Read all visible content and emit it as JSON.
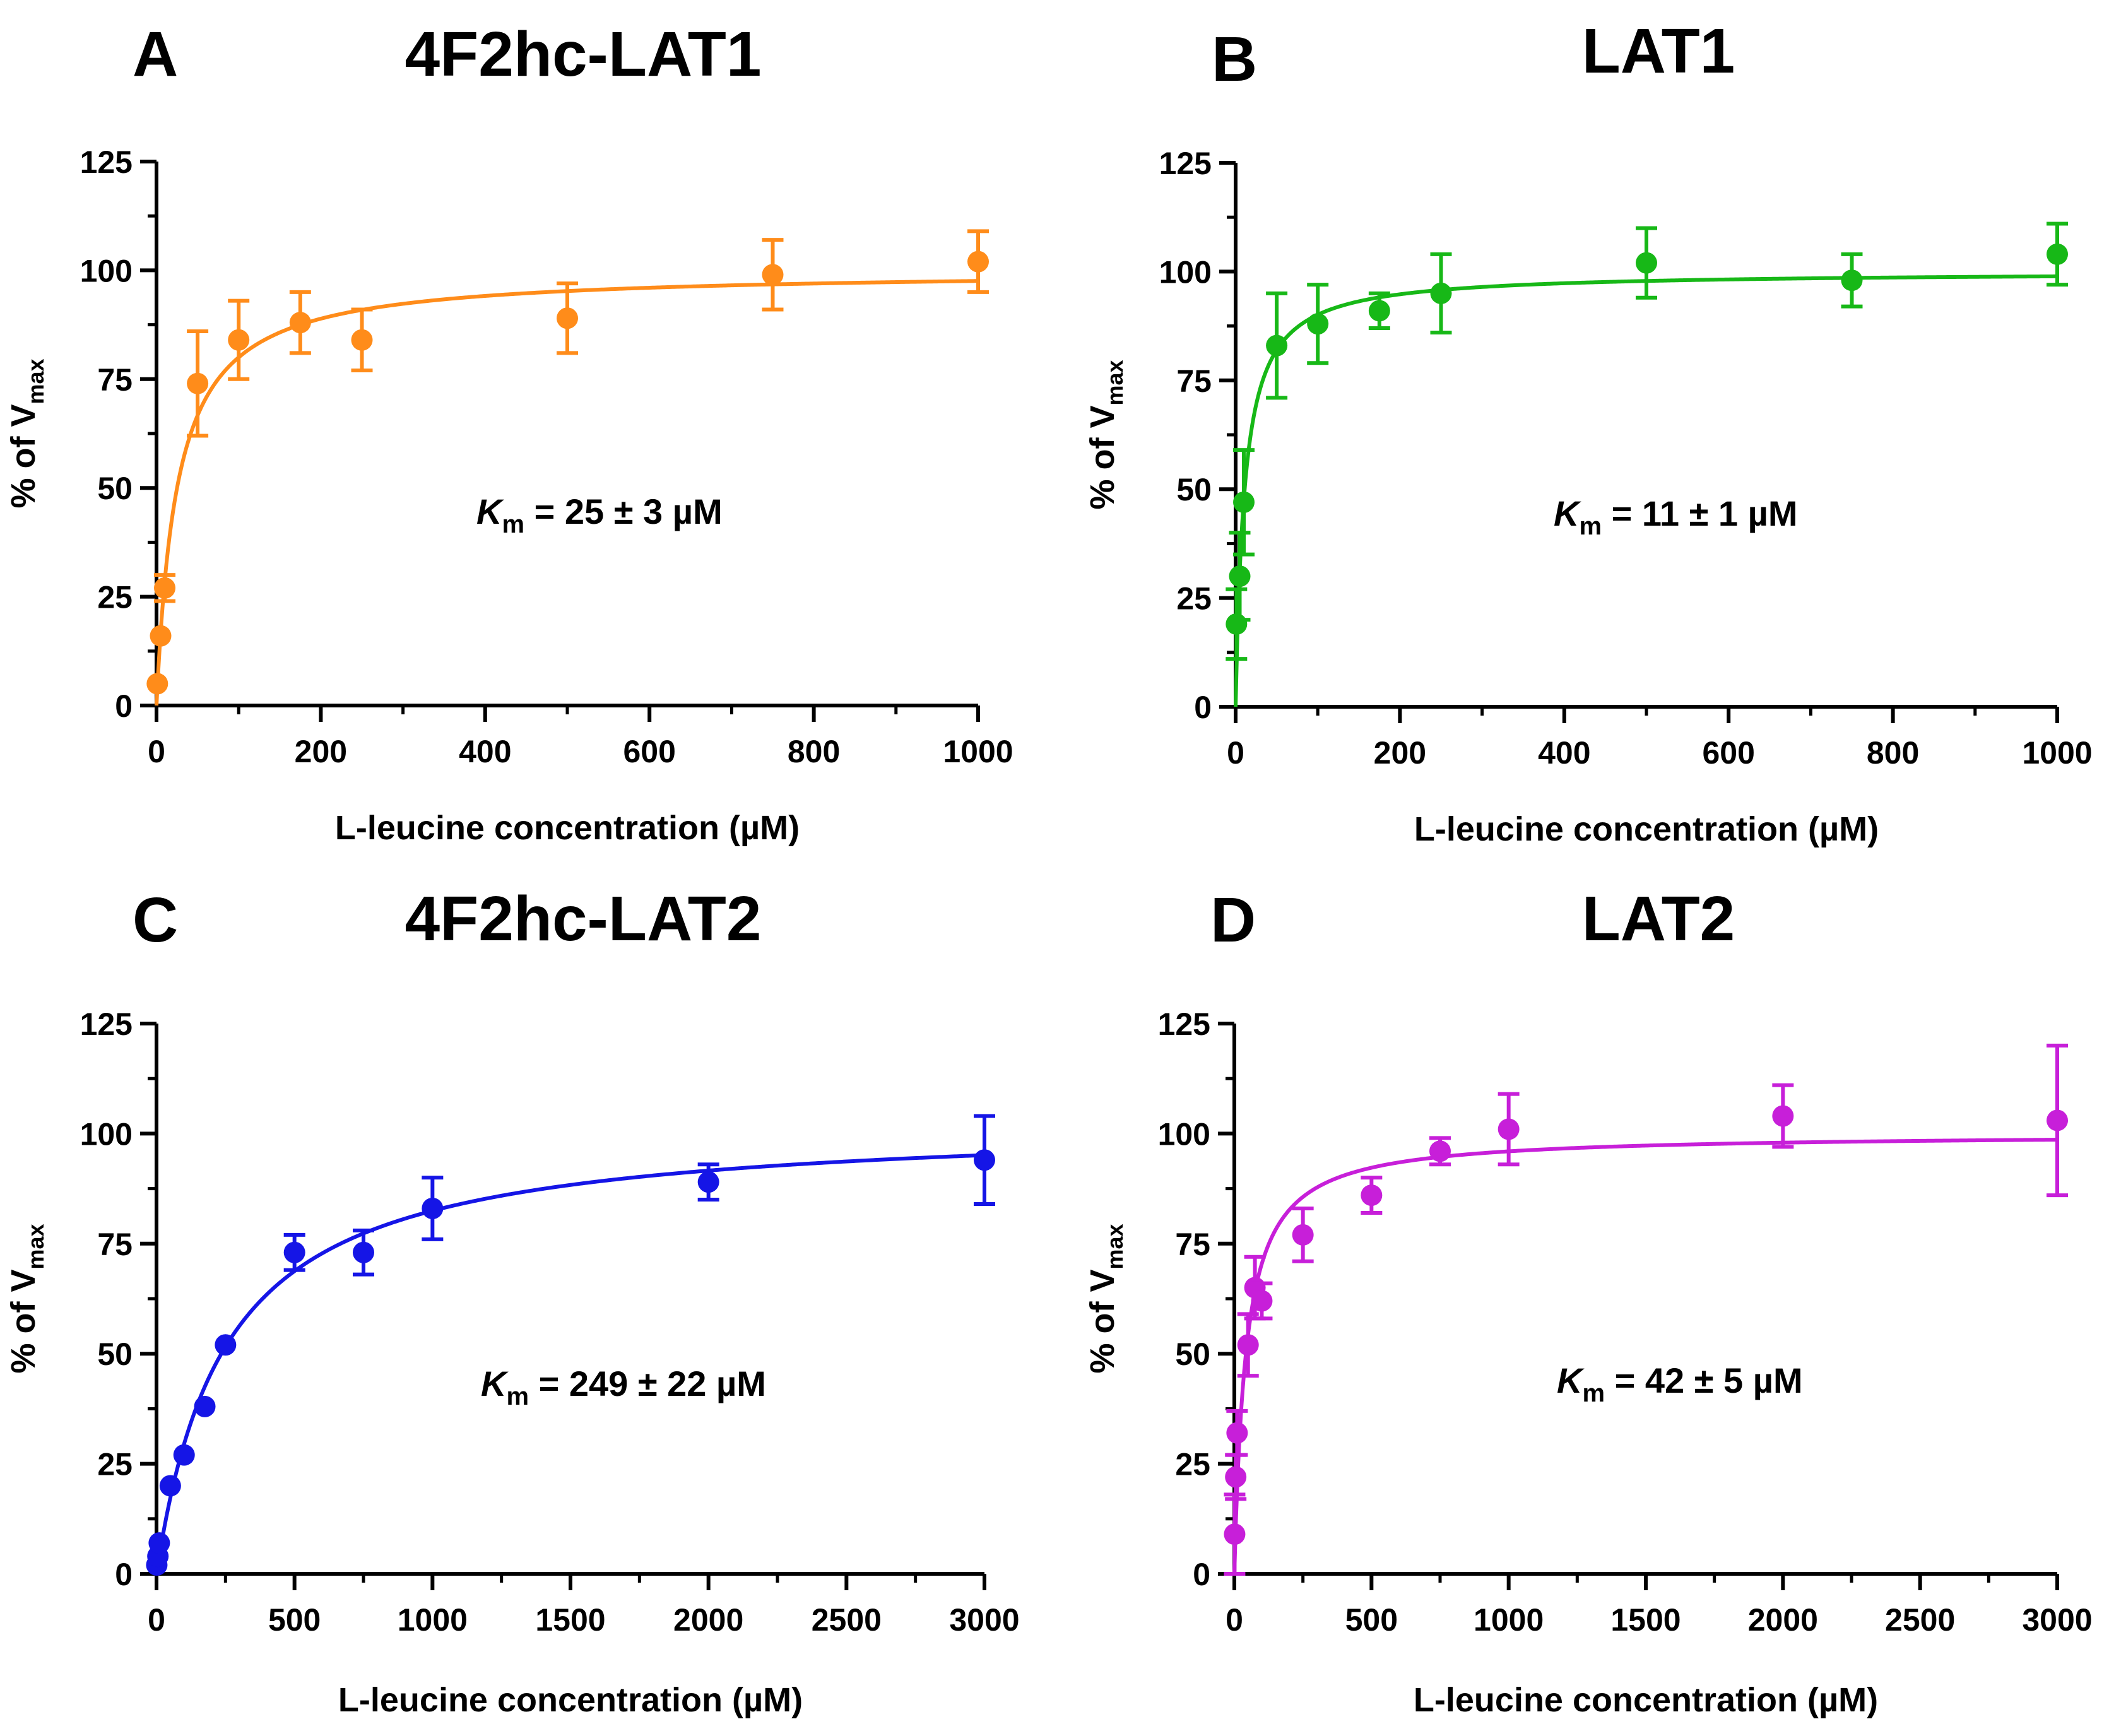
{
  "figure": {
    "colors": {
      "axis": "#000000",
      "text": "#000000",
      "background": "#ffffff"
    }
  },
  "chart_data": [
    {
      "type": "scatter",
      "panel_letter": "A",
      "title": "4F2hc-LAT1",
      "xlabel": "L-leucine concentration (µM)",
      "ylabel_main": "% of V",
      "ylabel_sub": "max",
      "xlim": [
        0,
        1000
      ],
      "ylim": [
        0,
        125
      ],
      "xticks": [
        0,
        200,
        400,
        600,
        800,
        1000
      ],
      "xtick_labels": [
        "0",
        "200",
        "400",
        "600",
        "800",
        "1000"
      ],
      "xminor_step": 100,
      "yticks": [
        0,
        25,
        50,
        75,
        100,
        125
      ],
      "ytick_labels": [
        "0",
        "25",
        "50",
        "75",
        "100",
        "125"
      ],
      "yminor_step": 12.5,
      "color": "#ff8c1a",
      "km_symbol": "K",
      "km_sub": "m",
      "km_value": " = 25 ± 3 µM",
      "fit": {
        "model": "michaelis-menten",
        "vmax": 100,
        "km": 25
      },
      "points": [
        {
          "x": 1,
          "y": 5,
          "err": 0
        },
        {
          "x": 5,
          "y": 16,
          "err": 0
        },
        {
          "x": 10,
          "y": 27,
          "err": 3
        },
        {
          "x": 50,
          "y": 74,
          "err": 12
        },
        {
          "x": 100,
          "y": 84,
          "err": 9
        },
        {
          "x": 175,
          "y": 88,
          "err": 7
        },
        {
          "x": 250,
          "y": 84,
          "err": 7
        },
        {
          "x": 500,
          "y": 89,
          "err": 8
        },
        {
          "x": 750,
          "y": 99,
          "err": 8
        },
        {
          "x": 1000,
          "y": 102,
          "err": 7
        }
      ]
    },
    {
      "type": "scatter",
      "panel_letter": "B",
      "title": "LAT1",
      "xlabel": "L-leucine concentration (µM)",
      "ylabel_main": "% of V",
      "ylabel_sub": "max",
      "xlim": [
        0,
        1000
      ],
      "ylim": [
        0,
        125
      ],
      "xticks": [
        0,
        200,
        400,
        600,
        800,
        1000
      ],
      "xtick_labels": [
        "0",
        "200",
        "400",
        "600",
        "800",
        "1000"
      ],
      "xminor_step": 100,
      "yticks": [
        0,
        25,
        50,
        75,
        100,
        125
      ],
      "ytick_labels": [
        "0",
        "25",
        "50",
        "75",
        "100",
        "125"
      ],
      "yminor_step": 12.5,
      "color": "#17b817",
      "km_symbol": "K",
      "km_sub": "m",
      "km_value": " = 11 ± 1 µM",
      "fit": {
        "model": "michaelis-menten",
        "vmax": 100,
        "km": 11
      },
      "points": [
        {
          "x": 1,
          "y": 19,
          "err": 8
        },
        {
          "x": 5,
          "y": 30,
          "err": 10
        },
        {
          "x": 10,
          "y": 47,
          "err": 12
        },
        {
          "x": 50,
          "y": 83,
          "err": 12
        },
        {
          "x": 100,
          "y": 88,
          "err": 9
        },
        {
          "x": 175,
          "y": 91,
          "err": 4
        },
        {
          "x": 250,
          "y": 95,
          "err": 9
        },
        {
          "x": 500,
          "y": 102,
          "err": 8
        },
        {
          "x": 750,
          "y": 98,
          "err": 6
        },
        {
          "x": 1000,
          "y": 104,
          "err": 7
        }
      ]
    },
    {
      "type": "scatter",
      "panel_letter": "C",
      "title": "4F2hc-LAT2",
      "xlabel": "L-leucine concentration (µM)",
      "ylabel_main": "% of V",
      "ylabel_sub": "max",
      "xlim": [
        0,
        3000
      ],
      "ylim": [
        0,
        125
      ],
      "xticks": [
        0,
        500,
        1000,
        1500,
        2000,
        2500,
        3000
      ],
      "xtick_labels": [
        "0",
        "500",
        "1000",
        "1500",
        "2000",
        "2500",
        "3000"
      ],
      "xminor_step": 250,
      "yticks": [
        0,
        25,
        50,
        75,
        100,
        125
      ],
      "ytick_labels": [
        "0",
        "25",
        "50",
        "75",
        "100",
        "125"
      ],
      "yminor_step": 12.5,
      "color": "#1515e6",
      "km_symbol": "K",
      "km_sub": "m",
      "km_value": " = 249 ± 22 µM",
      "fit": {
        "model": "michaelis-menten",
        "vmax": 103,
        "km": 249
      },
      "points": [
        {
          "x": 1,
          "y": 2,
          "err": 0
        },
        {
          "x": 5,
          "y": 4,
          "err": 0
        },
        {
          "x": 10,
          "y": 7,
          "err": 0
        },
        {
          "x": 50,
          "y": 20,
          "err": 0
        },
        {
          "x": 100,
          "y": 27,
          "err": 0
        },
        {
          "x": 175,
          "y": 38,
          "err": 0
        },
        {
          "x": 250,
          "y": 52,
          "err": 0
        },
        {
          "x": 500,
          "y": 73,
          "err": 4
        },
        {
          "x": 750,
          "y": 73,
          "err": 5
        },
        {
          "x": 1000,
          "y": 83,
          "err": 7
        },
        {
          "x": 2000,
          "y": 89,
          "err": 4
        },
        {
          "x": 3000,
          "y": 94,
          "err": 10
        }
      ]
    },
    {
      "type": "scatter",
      "panel_letter": "D",
      "title": "LAT2",
      "xlabel": "L-leucine concentration (µM)",
      "ylabel_main": "% of V",
      "ylabel_sub": "max",
      "xlim": [
        0,
        3000
      ],
      "ylim": [
        0,
        125
      ],
      "xticks": [
        0,
        500,
        1000,
        1500,
        2000,
        2500,
        3000
      ],
      "xtick_labels": [
        "0",
        "500",
        "1000",
        "1500",
        "2000",
        "2500",
        "3000"
      ],
      "xminor_step": 250,
      "yticks": [
        0,
        25,
        50,
        75,
        100,
        125
      ],
      "ytick_labels": [
        "0",
        "25",
        "50",
        "75",
        "100",
        "125"
      ],
      "yminor_step": 12.5,
      "color": "#c71fd9",
      "km_symbol": "K",
      "km_sub": "m",
      "km_value": " = 42 ± 5 µM",
      "fit": {
        "model": "michaelis-menten",
        "vmax": 100,
        "km": 42
      },
      "points": [
        {
          "x": 1,
          "y": 9,
          "err": 9
        },
        {
          "x": 5,
          "y": 22,
          "err": 5
        },
        {
          "x": 10,
          "y": 32,
          "err": 5
        },
        {
          "x": 50,
          "y": 52,
          "err": 7
        },
        {
          "x": 75,
          "y": 65,
          "err": 7
        },
        {
          "x": 100,
          "y": 62,
          "err": 4
        },
        {
          "x": 250,
          "y": 77,
          "err": 6
        },
        {
          "x": 500,
          "y": 86,
          "err": 4
        },
        {
          "x": 750,
          "y": 96,
          "err": 3
        },
        {
          "x": 1000,
          "y": 101,
          "err": 8
        },
        {
          "x": 2000,
          "y": 104,
          "err": 7
        },
        {
          "x": 3000,
          "y": 103,
          "err": 17
        }
      ]
    }
  ]
}
